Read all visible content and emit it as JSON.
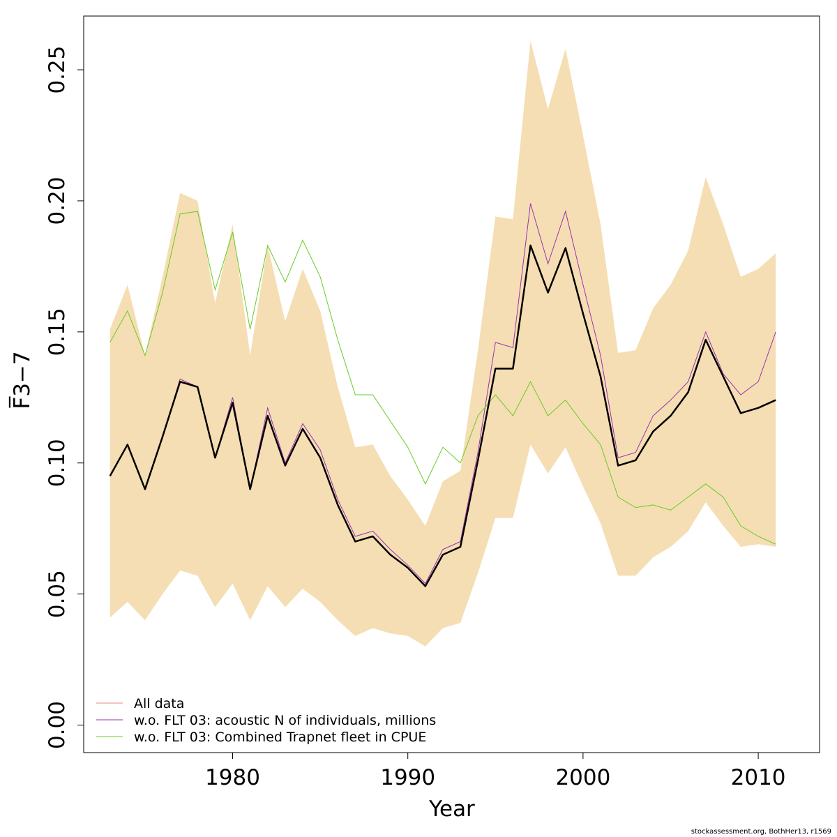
{
  "chart_data": {
    "type": "line",
    "xlabel": "Year",
    "ylabel": "F̅3−7",
    "xlim": [
      1971.5,
      2013.5
    ],
    "ylim": [
      -0.0105,
      0.2705
    ],
    "x_ticks": [
      1980,
      1990,
      2000,
      2010
    ],
    "y_ticks": [
      "0.00",
      "0.05",
      "0.10",
      "0.15",
      "0.20",
      "0.25"
    ],
    "x": [
      1973,
      1974,
      1975,
      1976,
      1977,
      1978,
      1979,
      1980,
      1981,
      1982,
      1983,
      1984,
      1985,
      1986,
      1987,
      1988,
      1989,
      1990,
      1991,
      1992,
      1993,
      1994,
      1995,
      1996,
      1997,
      1998,
      1999,
      2000,
      2001,
      2002,
      2003,
      2004,
      2005,
      2006,
      2007,
      2008,
      2009,
      2010,
      2011
    ],
    "band": {
      "upper": [
        0.151,
        0.168,
        0.141,
        0.171,
        0.203,
        0.2,
        0.161,
        0.191,
        0.141,
        0.183,
        0.154,
        0.174,
        0.158,
        0.129,
        0.106,
        0.107,
        0.095,
        0.086,
        0.076,
        0.093,
        0.097,
        0.143,
        0.194,
        0.193,
        0.261,
        0.235,
        0.258,
        0.225,
        0.191,
        0.142,
        0.143,
        0.159,
        0.168,
        0.181,
        0.209,
        0.191,
        0.171,
        0.174,
        0.18
      ],
      "lower": [
        0.041,
        0.047,
        0.04,
        0.05,
        0.059,
        0.057,
        0.045,
        0.054,
        0.04,
        0.053,
        0.045,
        0.052,
        0.047,
        0.04,
        0.034,
        0.037,
        0.035,
        0.034,
        0.03,
        0.037,
        0.039,
        0.058,
        0.079,
        0.079,
        0.107,
        0.096,
        0.106,
        0.091,
        0.077,
        0.057,
        0.057,
        0.064,
        0.068,
        0.074,
        0.085,
        0.076,
        0.068,
        0.069,
        0.068
      ],
      "color": "#f5deb3"
    },
    "series": [
      {
        "name": "All data",
        "color": "#ef8080",
        "values": [
          0.095,
          0.107,
          0.09,
          0.11,
          0.131,
          0.129,
          0.102,
          0.123,
          0.09,
          0.118,
          0.099,
          0.113,
          0.102,
          0.084,
          0.07,
          0.072,
          0.065,
          0.06,
          0.053,
          0.065,
          0.068,
          0.101,
          0.136,
          0.136,
          0.183,
          0.165,
          0.182,
          0.157,
          0.133,
          0.099,
          0.101,
          0.112,
          0.118,
          0.127,
          0.147,
          0.133,
          0.119,
          0.121,
          0.124
        ]
      },
      {
        "name": "w.o. FLT 03:   acoustic   N of individuals, millions",
        "color": "#9b30b0",
        "values": [
          0.095,
          0.107,
          0.09,
          0.11,
          0.132,
          0.129,
          0.102,
          0.125,
          0.09,
          0.121,
          0.1,
          0.115,
          0.105,
          0.086,
          0.072,
          0.074,
          0.067,
          0.061,
          0.054,
          0.067,
          0.07,
          0.104,
          0.146,
          0.144,
          0.199,
          0.176,
          0.196,
          0.168,
          0.141,
          0.102,
          0.104,
          0.118,
          0.124,
          0.131,
          0.15,
          0.134,
          0.126,
          0.131,
          0.15
        ]
      },
      {
        "name": "w.o. FLT 03: Combined Trapnet fleet in CPUE",
        "color": "#66cc22",
        "values": [
          0.146,
          0.158,
          0.141,
          0.165,
          0.195,
          0.196,
          0.166,
          0.188,
          0.151,
          0.183,
          0.169,
          0.185,
          0.171,
          0.147,
          0.126,
          0.126,
          0.116,
          0.106,
          0.092,
          0.106,
          0.1,
          0.118,
          0.126,
          0.118,
          0.131,
          0.118,
          0.124,
          0.115,
          0.107,
          0.087,
          0.083,
          0.084,
          0.082,
          0.087,
          0.092,
          0.087,
          0.076,
          0.072,
          0.069
        ]
      }
    ],
    "legend": {
      "position": "bottom-left",
      "entries": [
        "All data",
        "w.o. FLT 03:   acoustic   N of individuals, millions",
        "w.o. FLT 03: Combined Trapnet fleet in CPUE"
      ]
    },
    "credit": "stockassessment.org, BothHer13, r1569"
  }
}
